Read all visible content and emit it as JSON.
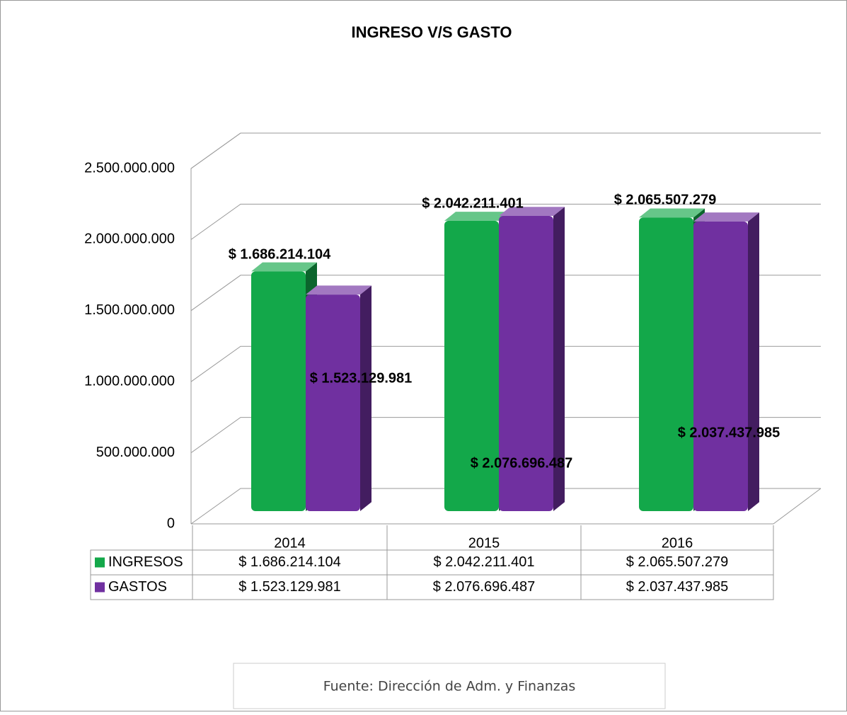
{
  "chart_data": {
    "type": "bar",
    "title": "INGRESO V/S GASTO",
    "categories": [
      "2014",
      "2015",
      "2016"
    ],
    "series": [
      {
        "name": "INGRESOS",
        "color": "#13a84a",
        "values": [
          1686214104,
          2042211401,
          2065507279
        ],
        "value_labels": [
          "$ 1.686.214.104",
          "$ 2.042.211.401",
          "$ 2.065.507.279"
        ]
      },
      {
        "name": "GASTOS",
        "color": "#7030a0",
        "values": [
          1523129981,
          2076696487,
          2037437985
        ],
        "value_labels": [
          "$ 1.523.129.981",
          "$ 2.076.696.487",
          "$ 2.037.437.985"
        ]
      }
    ],
    "ylim": [
      0,
      2500000000
    ],
    "yticks": [
      0,
      {
        "value": 500000000,
        "label": "500.000.000"
      },
      {
        "value": 1000000000,
        "label": "1.000.000.000"
      },
      {
        "value": 1500000000,
        "label": "1.500.000.000"
      },
      {
        "value": 2000000000,
        "label": "2.000.000.000"
      },
      {
        "value": 2500000000,
        "label": "2.500.000.000"
      }
    ],
    "grid": true,
    "source": "Fuente: Dirección de Adm. y Finanzas"
  }
}
